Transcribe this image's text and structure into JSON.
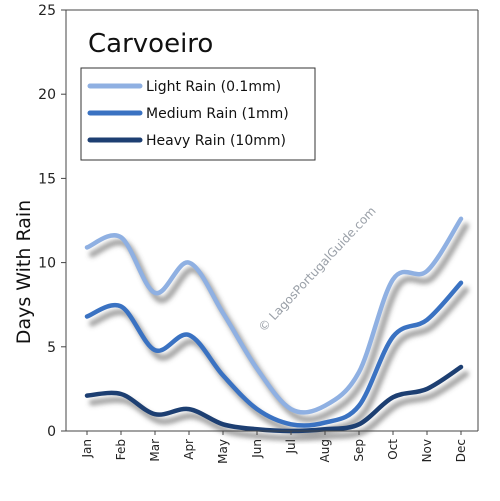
{
  "chart_data": {
    "type": "line",
    "title": "Carvoeiro",
    "ylabel": "Days With Rain",
    "xlabel": "",
    "categories": [
      "Jan",
      "Feb",
      "Mar",
      "Apr",
      "May",
      "Jun",
      "Jul",
      "Aug",
      "Sep",
      "Oct",
      "Nov",
      "Dec"
    ],
    "ylim": [
      0,
      25
    ],
    "yticks": [
      0,
      5,
      10,
      15,
      20,
      25
    ],
    "grid": false,
    "legend_position": "top-left",
    "watermark": "© LagosPortugalGuide.com",
    "series": [
      {
        "name": "Light Rain (0.1mm)",
        "color": "#8fb0e2",
        "values": [
          10.9,
          11.5,
          8.2,
          10.0,
          7.0,
          3.7,
          1.3,
          1.5,
          3.5,
          9.0,
          9.5,
          12.6
        ]
      },
      {
        "name": "Medium Rain (1mm)",
        "color": "#3a72c2",
        "values": [
          6.8,
          7.4,
          4.8,
          5.7,
          3.3,
          1.3,
          0.4,
          0.5,
          1.5,
          5.6,
          6.6,
          8.8
        ]
      },
      {
        "name": "Heavy Rain (10mm)",
        "color": "#1d3f72",
        "values": [
          2.1,
          2.2,
          1.0,
          1.3,
          0.4,
          0.1,
          0.0,
          0.1,
          0.4,
          2.0,
          2.5,
          3.8
        ]
      }
    ]
  }
}
